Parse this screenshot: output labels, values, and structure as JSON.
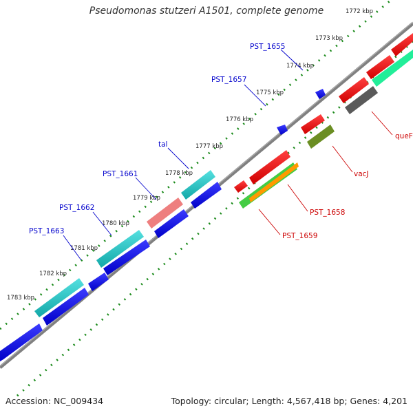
{
  "title": "Pseudomonas stutzeri A1501, complete genome",
  "footer": {
    "accession": "Accession: NC_009434",
    "topology": "Topology: circular; Length: 4,567,418 bp; Genes: 4,201"
  },
  "ticks": [
    "1772 kbp",
    "1773 kbp",
    "1774 kbp",
    "1775 kbp",
    "1776 kbp",
    "1777 kbp",
    "1778 kbp",
    "1779 kbp",
    "1780 kbp",
    "1781 kbp",
    "1782 kbp",
    "1783 kbp"
  ],
  "gene_labels": [
    {
      "text": "PST_1655",
      "color": "#0000cc"
    },
    {
      "text": "PST_1657",
      "color": "#0000cc"
    },
    {
      "text": "tal",
      "color": "#0000cc"
    },
    {
      "text": "PST_1661",
      "color": "#0000cc"
    },
    {
      "text": "PST_1662",
      "color": "#0000cc"
    },
    {
      "text": "PST_1663",
      "color": "#0000cc"
    },
    {
      "text": "queF",
      "color": "#cc0000"
    },
    {
      "text": "vacJ",
      "color": "#cc0000"
    },
    {
      "text": "PST_1658",
      "color": "#cc0000"
    },
    {
      "text": "PST_1659",
      "color": "#cc0000"
    }
  ],
  "colors": {
    "backbone": "#808080",
    "tick_dots": "#1a8a1a",
    "forward_cds": "#0000ee",
    "reverse_cds": "#ee0000",
    "tal": "#ee7f7f",
    "cyan_feature": "#22c4c4",
    "green_feature": "#22ee99",
    "grey_feature": "#5a5a5a",
    "olive_feature": "#6b8e23",
    "orange_feature": "#ff9900",
    "lightgreen_feature": "#44cc44"
  }
}
